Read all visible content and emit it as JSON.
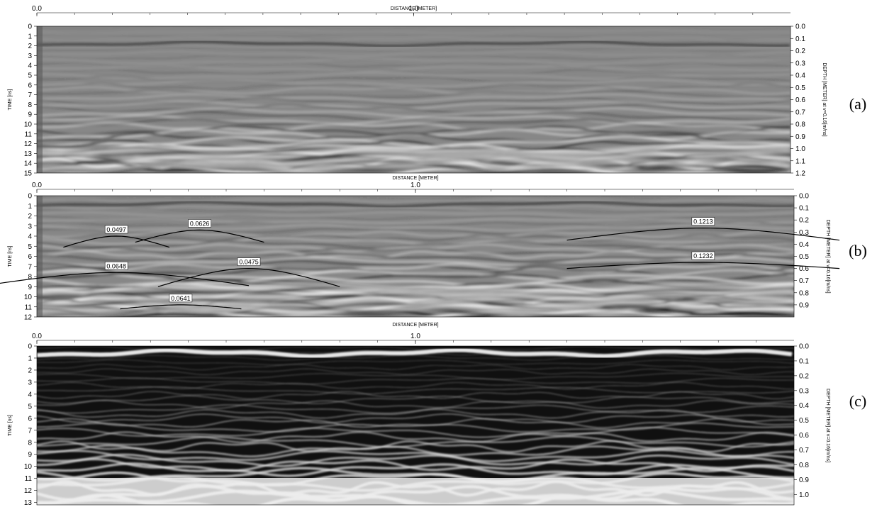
{
  "chart_data": [
    {
      "type": "heatmap",
      "panel_label": "(a)",
      "xlabel": "DISTANCE [METER]",
      "ylabel_left": "TIME [ns]",
      "ylabel_right": "DEPTH [METER] at v=0.16[m/ns]",
      "x_ticks": [
        "0.0",
        "1.0"
      ],
      "x_tick_values": [
        0.0,
        1.0
      ],
      "xlim": [
        0.0,
        2.0
      ],
      "y_left_ticks": [
        0,
        1,
        2,
        3,
        4,
        5,
        6,
        7,
        8,
        9,
        10,
        11,
        12,
        13,
        14,
        15
      ],
      "ylim_left": [
        0,
        15
      ],
      "y_right_ticks": [
        "0.0",
        "0.1",
        "0.2",
        "0.3",
        "0.4",
        "0.5",
        "0.6",
        "0.7",
        "0.8",
        "0.9",
        "1.0",
        "1.1",
        "1.2"
      ],
      "ylim_right": [
        0.0,
        1.2
      ],
      "style": "grayscale radargram",
      "annotations": []
    },
    {
      "type": "heatmap",
      "panel_label": "(b)",
      "xlabel": "DISTANCE [METER]",
      "ylabel_left": "TIME [ns]",
      "ylabel_right": "DEPTH [METER] at v=0.16[m/ns]",
      "x_ticks": [
        "0.0",
        "1.0"
      ],
      "x_tick_values": [
        0.0,
        1.0
      ],
      "xlim": [
        0.0,
        2.0
      ],
      "y_left_ticks": [
        0,
        1,
        2,
        3,
        4,
        5,
        6,
        7,
        8,
        9,
        10,
        11,
        12
      ],
      "ylim_left": [
        0,
        12
      ],
      "y_right_ticks": [
        "0.0",
        "0.1",
        "0.2",
        "0.3",
        "0.4",
        "0.5",
        "0.6",
        "0.7",
        "0.8",
        "0.9"
      ],
      "ylim_right": [
        0.0,
        1.0
      ],
      "style": "grayscale radargram with fitted hyperbolas",
      "annotations": [
        {
          "label": "0.0497",
          "x_center": 0.21,
          "t_apex": 4.0,
          "half_width": 0.14,
          "drop": 1.1
        },
        {
          "label": "0.0626",
          "x_center": 0.43,
          "t_apex": 3.4,
          "half_width": 0.17,
          "drop": 1.2
        },
        {
          "label": "0.0648",
          "x_center": 0.21,
          "t_apex": 7.6,
          "half_width": 0.35,
          "drop": 1.3
        },
        {
          "label": "0.0475",
          "x_center": 0.56,
          "t_apex": 7.2,
          "half_width": 0.24,
          "drop": 1.8
        },
        {
          "label": "0.0641",
          "x_center": 0.38,
          "t_apex": 10.8,
          "half_width": 0.16,
          "drop": 0.4
        },
        {
          "label": "0.1213",
          "x_center": 1.76,
          "t_apex": 3.2,
          "half_width": 0.36,
          "drop": 1.2
        },
        {
          "label": "0.1232",
          "x_center": 1.76,
          "t_apex": 6.6,
          "half_width": 0.36,
          "drop": 0.6
        }
      ]
    },
    {
      "type": "heatmap",
      "panel_label": "(c)",
      "xlabel": "DISTANCE [METER]",
      "ylabel_left": "TIME [ns]",
      "ylabel_right": "DEPTH [METER] at v=0.16[m/ns]",
      "x_ticks": [
        "0.0",
        "1.0"
      ],
      "x_tick_values": [
        0.0,
        1.0
      ],
      "xlim": [
        0.0,
        2.0
      ],
      "y_left_ticks": [
        0,
        1,
        2,
        3,
        4,
        5,
        6,
        7,
        8,
        9,
        10,
        11,
        12,
        13
      ],
      "ylim_left": [
        0,
        13.2
      ],
      "y_right_ticks": [
        "0.0",
        "0.1",
        "0.2",
        "0.3",
        "0.4",
        "0.5",
        "0.6",
        "0.7",
        "0.8",
        "0.9",
        "1.0"
      ],
      "ylim_right": [
        0.0,
        1.07
      ],
      "style": "black/white envelope radargram",
      "annotations": []
    }
  ]
}
